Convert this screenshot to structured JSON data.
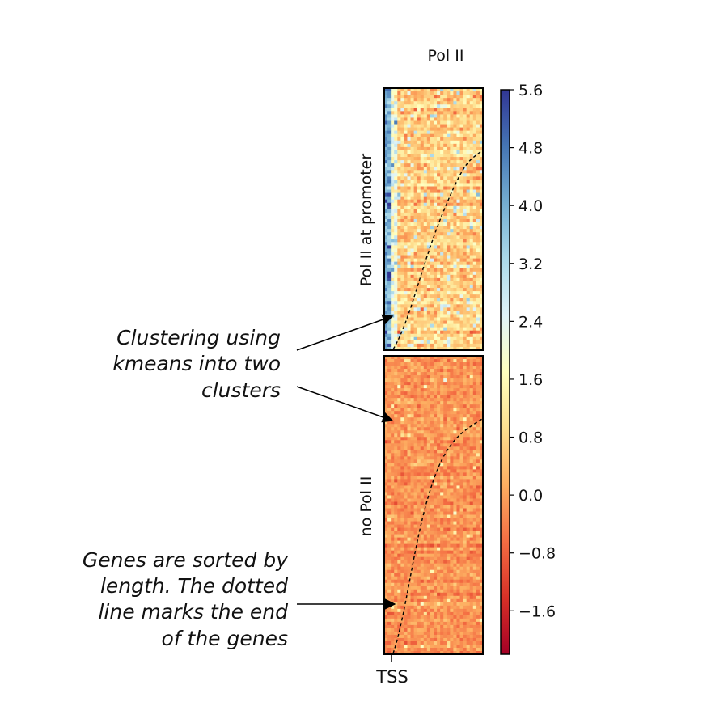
{
  "chart_data": {
    "type": "heatmap",
    "title": "Pol II",
    "xlabel": "",
    "ylabel": "",
    "x_tick_labels": [
      "TSS"
    ],
    "clusters": [
      {
        "label": "Pol II at promoter"
      },
      {
        "label": "no Pol II"
      }
    ],
    "colorbar": {
      "range": [
        -2.2,
        5.6
      ],
      "ticks": [
        "5.6",
        "4.8",
        "4.0",
        "3.2",
        "2.4",
        "1.6",
        "0.8",
        "0.0",
        "−0.8",
        "−1.6"
      ],
      "tick_values": [
        5.6,
        4.8,
        4.0,
        3.2,
        2.4,
        1.6,
        0.8,
        0.0,
        -0.8,
        -1.6
      ],
      "colormap": "red-yellow-blue",
      "colors": [
        "#a50026",
        "#d73027",
        "#f46d43",
        "#fdae61",
        "#fee090",
        "#ffffbf",
        "#e0f3f8",
        "#abd9e9",
        "#74add1",
        "#4575b4",
        "#313695"
      ]
    },
    "annotations": [
      {
        "id": "clustering",
        "lines": [
          "Clustering using",
          "kmeans into two",
          "clusters"
        ]
      },
      {
        "id": "sorting",
        "lines": [
          "Genes are sorted by",
          "length. The dotted",
          "line marks the end",
          "of the genes"
        ]
      }
    ]
  }
}
